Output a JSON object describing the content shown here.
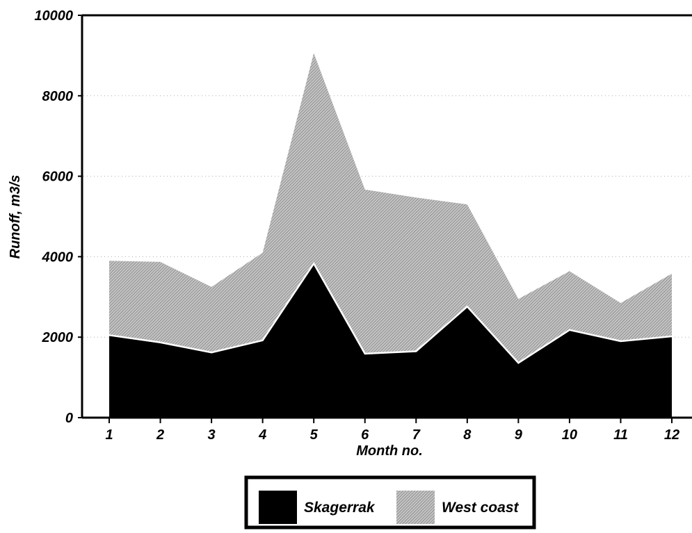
{
  "chart_data": {
    "type": "area",
    "stacked": true,
    "x": [
      1,
      2,
      3,
      4,
      5,
      6,
      7,
      8,
      9,
      10,
      11,
      12
    ],
    "xlabel": "Month no.",
    "ylabel": "Runoff, m3/s",
    "ylim": [
      0,
      10000
    ],
    "yticks": [
      0,
      2000,
      4000,
      6000,
      8000,
      10000
    ],
    "grid": "horizontal dotted",
    "legend_position": "bottom-center",
    "series": [
      {
        "name": "Skagerrak",
        "fill": "solid black",
        "color": "#000000",
        "values": [
          2050,
          1870,
          1620,
          1920,
          3830,
          1590,
          1650,
          2760,
          1360,
          2180,
          1900,
          2020
        ]
      },
      {
        "name": "West coast",
        "fill": "hatched gray",
        "color": "#9a9a9a",
        "values": [
          1850,
          2000,
          1630,
          2180,
          5230,
          4080,
          3820,
          2540,
          1590,
          1460,
          950,
          1560
        ]
      }
    ]
  }
}
